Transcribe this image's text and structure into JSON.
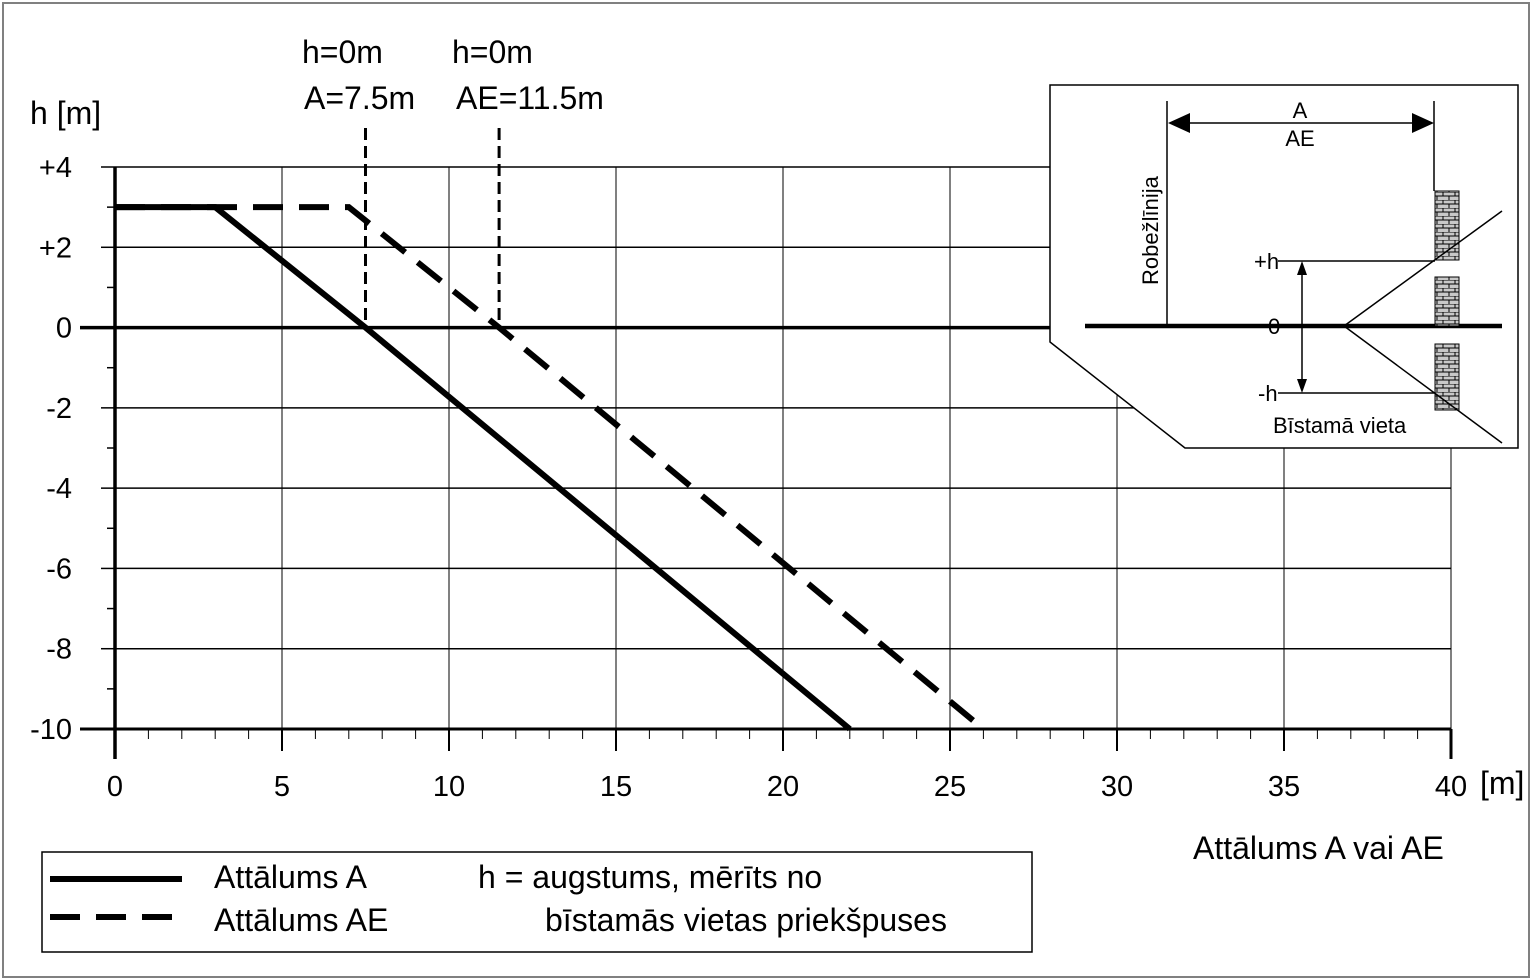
{
  "chart_data": {
    "type": "line",
    "ylabel": "h [m]",
    "xlabel": "Attālums A vai AE",
    "x_unit_label": "[m]",
    "xlim": [
      0,
      40
    ],
    "ylim": [
      -10,
      4
    ],
    "x_ticks": [
      0,
      5,
      10,
      15,
      20,
      25,
      30,
      35,
      40
    ],
    "y_ticks": [
      4,
      2,
      0,
      -2,
      -4,
      -6,
      -8,
      -10
    ],
    "y_tick_labels": [
      "+4",
      "+2",
      "0",
      "-2",
      "-4",
      "-6",
      "-8",
      "-10"
    ],
    "grid": true,
    "series": [
      {
        "name": "Attālums A",
        "style": "solid",
        "x": [
          0,
          3,
          7.5,
          22
        ],
        "y": [
          3,
          3,
          0,
          -10
        ]
      },
      {
        "name": "Attālums AE",
        "style": "dashed",
        "x": [
          0,
          7,
          11.5,
          26
        ],
        "y": [
          3,
          3,
          0,
          -10
        ]
      }
    ],
    "annotations": [
      {
        "x": 7.5,
        "line1": "h=0m",
        "line2": "A=7.5m"
      },
      {
        "x": 11.5,
        "line1": "h=0m",
        "line2": "AE=11.5m"
      }
    ],
    "legend": {
      "placement": "bottom-left",
      "note_line1": "h = augstums, mērīts no",
      "note_line2": "bīstamās vietas priekšpuses"
    },
    "inset": {
      "dim_label_a": "A",
      "dim_label_ae": "AE",
      "boundary_label": "Robežlīnija",
      "plus_h": "+h",
      "zero": "0",
      "minus_h": "-h",
      "hazard_label": "Bīstamā vieta"
    }
  },
  "colors": {
    "line": "#000000",
    "grid": "#000000",
    "frame": "#808080",
    "hatch": "#a0a0a0"
  }
}
